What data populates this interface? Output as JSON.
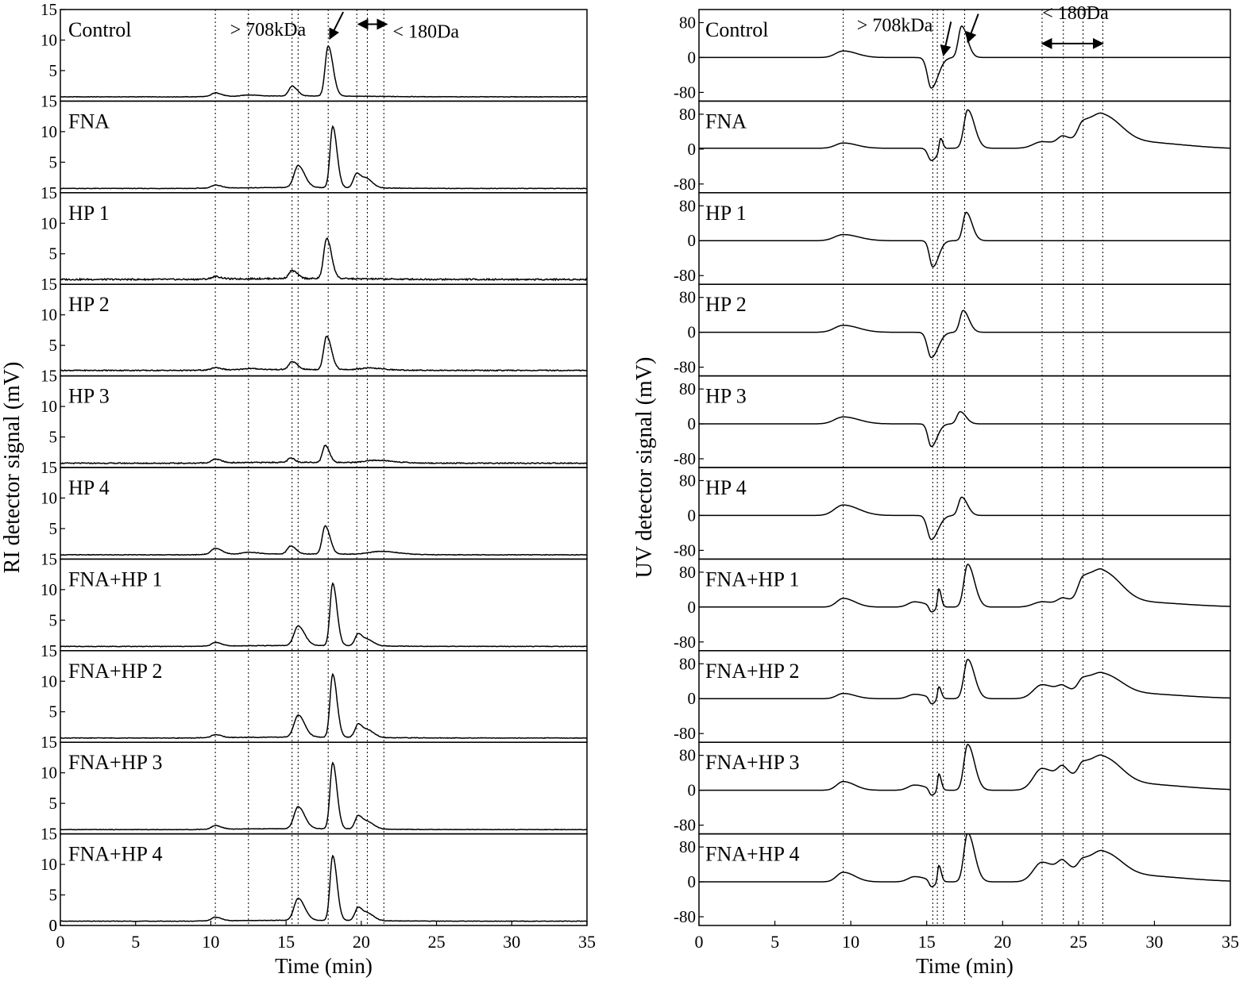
{
  "chart_data": [
    {
      "type": "line",
      "panel": "left",
      "xlabel": "Time (min)",
      "ylabel": "RI detector signal (mV)",
      "xlim": [
        0,
        35
      ],
      "x_ticks": [
        "0",
        "5",
        "10",
        "15",
        "20",
        "25",
        "30",
        "35"
      ],
      "ylim": [
        0,
        15
      ],
      "y_ticks": [
        "15",
        "10",
        "5",
        "0"
      ],
      "dashed_lines_x": [
        10.3,
        12.5,
        15.4,
        15.8,
        17.8,
        19.7,
        20.4,
        21.5
      ],
      "annotations": [
        {
          "text": "> 708kDa",
          "x": 13.8,
          "y_panel": 0,
          "y": 10.7
        },
        {
          "text": "< 180Da",
          "x": 24.3,
          "y_panel": 0,
          "y": 10.4
        },
        {
          "kind": "arrow",
          "from": [
            18.8,
            14.6
          ],
          "to": [
            17.9,
            10.2
          ],
          "y_panel": 0
        },
        {
          "kind": "double-arrow",
          "from": [
            19.8,
            12.6
          ],
          "to": [
            21.7,
            12.6
          ],
          "y_panel": 0
        }
      ],
      "series": [
        {
          "name": "Control",
          "baseline": 0.7,
          "noise": 0.04,
          "peaks": [
            [
              10.3,
              0.6,
              0.35
            ],
            [
              12.5,
              0.2,
              0.6
            ],
            [
              15.4,
              1.6,
              0.3
            ],
            [
              17.8,
              8.2,
              0.28
            ]
          ]
        },
        {
          "name": "FNA",
          "baseline": 0.7,
          "noise": 0.04,
          "peaks": [
            [
              10.3,
              0.5,
              0.35
            ],
            [
              15.8,
              3.6,
              0.38
            ],
            [
              18.1,
              10.0,
              0.25
            ],
            [
              19.7,
              2.4,
              0.3
            ],
            [
              20.4,
              1.3,
              0.35
            ]
          ]
        },
        {
          "name": "HP 1",
          "baseline": 0.8,
          "noise": 0.12,
          "peaks": [
            [
              10.3,
              0.4,
              0.35
            ],
            [
              15.4,
              1.3,
              0.3
            ],
            [
              17.7,
              6.6,
              0.28
            ]
          ]
        },
        {
          "name": "HP 2",
          "baseline": 0.9,
          "noise": 0.08,
          "peaks": [
            [
              10.3,
              0.4,
              0.35
            ],
            [
              12.5,
              0.2,
              0.6
            ],
            [
              15.4,
              1.3,
              0.3
            ],
            [
              17.7,
              5.5,
              0.28
            ],
            [
              20.5,
              0.3,
              0.8
            ]
          ]
        },
        {
          "name": "HP 3",
          "baseline": 0.7,
          "noise": 0.08,
          "peaks": [
            [
              10.3,
              0.6,
              0.35
            ],
            [
              15.3,
              0.7,
              0.25
            ],
            [
              17.6,
              2.8,
              0.25
            ],
            [
              21.0,
              0.4,
              1.0
            ]
          ]
        },
        {
          "name": "HP 4",
          "baseline": 0.7,
          "noise": 0.05,
          "peaks": [
            [
              10.3,
              1.0,
              0.4
            ],
            [
              12.5,
              0.3,
              0.6
            ],
            [
              15.3,
              1.3,
              0.3
            ],
            [
              17.6,
              4.6,
              0.28
            ],
            [
              21.3,
              0.5,
              1.0
            ]
          ]
        },
        {
          "name": "FNA+HP 1",
          "baseline": 0.7,
          "noise": 0.04,
          "peaks": [
            [
              10.3,
              0.6,
              0.35
            ],
            [
              15.8,
              3.2,
              0.38
            ],
            [
              18.1,
              10.2,
              0.25
            ],
            [
              19.8,
              2.0,
              0.3
            ],
            [
              20.5,
              0.8,
              0.35
            ]
          ]
        },
        {
          "name": "FNA+HP 2",
          "baseline": 0.7,
          "noise": 0.05,
          "peaks": [
            [
              10.3,
              0.5,
              0.35
            ],
            [
              15.8,
              3.6,
              0.38
            ],
            [
              18.1,
              10.3,
              0.25
            ],
            [
              19.8,
              2.2,
              0.3
            ],
            [
              20.5,
              1.0,
              0.35
            ]
          ]
        },
        {
          "name": "FNA+HP 3",
          "baseline": 0.7,
          "noise": 0.04,
          "peaks": [
            [
              10.3,
              0.6,
              0.35
            ],
            [
              15.8,
              3.6,
              0.38
            ],
            [
              18.1,
              10.8,
              0.25
            ],
            [
              19.8,
              2.2,
              0.3
            ],
            [
              20.5,
              1.0,
              0.35
            ]
          ]
        },
        {
          "name": "FNA+HP 4",
          "baseline": 0.7,
          "noise": 0.04,
          "peaks": [
            [
              10.3,
              0.6,
              0.35
            ],
            [
              15.8,
              3.6,
              0.38
            ],
            [
              18.1,
              10.6,
              0.25
            ],
            [
              19.8,
              2.2,
              0.3
            ],
            [
              20.5,
              1.0,
              0.35
            ]
          ]
        }
      ]
    },
    {
      "type": "line",
      "panel": "right",
      "xlabel": "Time (min)",
      "ylabel": "UV detector signal (mV)",
      "xlim": [
        0,
        35
      ],
      "x_ticks": [
        "0",
        "5",
        "10",
        "15",
        "20",
        "25",
        "30",
        "35"
      ],
      "ylim": [
        -100,
        110
      ],
      "y_ticks": [
        "80",
        "0",
        "-80"
      ],
      "dashed_lines_x": [
        9.5,
        15.4,
        15.7,
        16.1,
        17.5,
        22.6,
        24.0,
        25.3,
        26.6
      ],
      "annotations": [
        {
          "text": "> 708kDa",
          "x": 12.9,
          "y_panel": 0,
          "y": 60
        },
        {
          "text": "< 180Da",
          "x": 24.8,
          "y_panel": 0,
          "y": 88
        },
        {
          "kind": "arrow",
          "from": [
            16.6,
            82
          ],
          "to": [
            16.1,
            5
          ],
          "y_panel": 0
        },
        {
          "kind": "arrow",
          "from": [
            18.4,
            100
          ],
          "to": [
            17.7,
            35
          ],
          "y_panel": 0
        },
        {
          "kind": "double-arrow",
          "from": [
            22.6,
            32
          ],
          "to": [
            26.6,
            32
          ],
          "y_panel": 0
        }
      ],
      "series": [
        {
          "name": "Control",
          "base": 0,
          "peaks": [
            [
              9.5,
              15,
              0.7
            ],
            [
              15.3,
              -70,
              0.35
            ],
            [
              17.3,
              72,
              0.3
            ]
          ]
        },
        {
          "name": "FNA",
          "base": 2,
          "peaks": [
            [
              9.5,
              12,
              0.7
            ],
            [
              15.3,
              -28,
              0.3
            ],
            [
              15.9,
              30,
              0.12
            ],
            [
              17.7,
              88,
              0.35
            ],
            [
              22.6,
              15,
              0.8
            ],
            [
              24.0,
              22,
              0.5
            ],
            [
              25.3,
              50,
              0.5
            ],
            [
              26.6,
              65,
              0.9
            ],
            [
              28.5,
              15,
              2.5
            ]
          ]
        },
        {
          "name": "HP 1",
          "base": 0,
          "peaks": [
            [
              9.5,
              14,
              0.8
            ],
            [
              15.4,
              -60,
              0.3
            ],
            [
              17.6,
              65,
              0.3
            ]
          ]
        },
        {
          "name": "HP 2",
          "base": 0,
          "peaks": [
            [
              9.5,
              16,
              0.8
            ],
            [
              15.3,
              -58,
              0.35
            ],
            [
              17.4,
              50,
              0.3
            ]
          ]
        },
        {
          "name": "HP 3",
          "base": 0,
          "peaks": [
            [
              9.5,
              16,
              0.8
            ],
            [
              15.3,
              -52,
              0.3
            ],
            [
              17.2,
              28,
              0.3
            ]
          ]
        },
        {
          "name": "HP 4",
          "base": 0,
          "peaks": [
            [
              9.5,
              24,
              0.8
            ],
            [
              15.3,
              -55,
              0.35
            ],
            [
              17.3,
              42,
              0.3
            ]
          ]
        },
        {
          "name": "FNA+HP 1",
          "base": 0,
          "peaks": [
            [
              9.5,
              20,
              0.6
            ],
            [
              14.2,
              12,
              0.6
            ],
            [
              15.3,
              -15,
              0.2
            ],
            [
              15.8,
              42,
              0.12
            ],
            [
              17.7,
              98,
              0.35
            ],
            [
              22.6,
              12,
              0.8
            ],
            [
              24.0,
              16,
              0.5
            ],
            [
              25.3,
              58,
              0.5
            ],
            [
              26.6,
              72,
              0.9
            ],
            [
              28.5,
              12,
              2.5
            ]
          ]
        },
        {
          "name": "FNA+HP 2",
          "base": 0,
          "peaks": [
            [
              9.5,
              12,
              0.6
            ],
            [
              14.2,
              10,
              0.6
            ],
            [
              15.3,
              -15,
              0.2
            ],
            [
              15.8,
              28,
              0.12
            ],
            [
              17.7,
              90,
              0.35
            ],
            [
              22.6,
              32,
              0.8
            ],
            [
              24.0,
              18,
              0.5
            ],
            [
              25.3,
              38,
              0.5
            ],
            [
              26.6,
              48,
              0.9
            ],
            [
              28.5,
              12,
              2.5
            ]
          ]
        },
        {
          "name": "FNA+HP 3",
          "base": 0,
          "peaks": [
            [
              9.5,
              20,
              0.6
            ],
            [
              14.2,
              12,
              0.6
            ],
            [
              15.3,
              -15,
              0.2
            ],
            [
              15.8,
              38,
              0.12
            ],
            [
              17.7,
              105,
              0.35
            ],
            [
              22.6,
              50,
              0.8
            ],
            [
              24.0,
              36,
              0.5
            ],
            [
              25.3,
              50,
              0.5
            ],
            [
              26.6,
              65,
              0.9
            ],
            [
              28.5,
              15,
              2.5
            ]
          ]
        },
        {
          "name": "FNA+HP 4",
          "base": 0,
          "peaks": [
            [
              9.5,
              22,
              0.6
            ],
            [
              14.2,
              12,
              0.6
            ],
            [
              15.3,
              -15,
              0.2
            ],
            [
              15.8,
              38,
              0.12
            ],
            [
              17.7,
              112,
              0.35
            ],
            [
              22.6,
              45,
              0.8
            ],
            [
              24.0,
              32,
              0.5
            ],
            [
              25.3,
              40,
              0.5
            ],
            [
              26.6,
              58,
              0.9
            ],
            [
              28.5,
              15,
              2.5
            ]
          ]
        }
      ]
    }
  ]
}
